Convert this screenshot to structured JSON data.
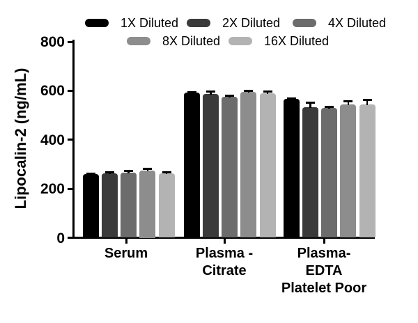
{
  "chart_data": {
    "type": "bar",
    "title": "",
    "ylabel": "Lipocalin-2 (ng/mL)",
    "xlabel": "",
    "ylim": [
      0,
      800
    ],
    "yticks": [
      0,
      200,
      400,
      600,
      800
    ],
    "grid": false,
    "legend_position": "top",
    "categories": [
      [
        "Serum"
      ],
      [
        "Plasma -",
        "Citrate"
      ],
      [
        "Plasma-",
        "EDTA",
        "Platelet Poor"
      ]
    ],
    "series": [
      {
        "name": "1X Diluted",
        "color": "#000000",
        "values": [
          260,
          592,
          566
        ],
        "errors": [
          2,
          2,
          2
        ]
      },
      {
        "name": "2X Diluted",
        "color": "#3a3a3a",
        "values": [
          262,
          586,
          534
        ],
        "errors": [
          6,
          11,
          16
        ]
      },
      {
        "name": "4X Diluted",
        "color": "#6c6c6c",
        "values": [
          267,
          576,
          529
        ],
        "errors": [
          5,
          4,
          4
        ]
      },
      {
        "name": "8X Diluted",
        "color": "#8d8d8d",
        "values": [
          275,
          594,
          543
        ],
        "errors": [
          7,
          6,
          15
        ]
      },
      {
        "name": "16X Diluted",
        "color": "#b3b3b3",
        "values": [
          262,
          591,
          545
        ],
        "errors": [
          5,
          7,
          17
        ]
      }
    ]
  }
}
